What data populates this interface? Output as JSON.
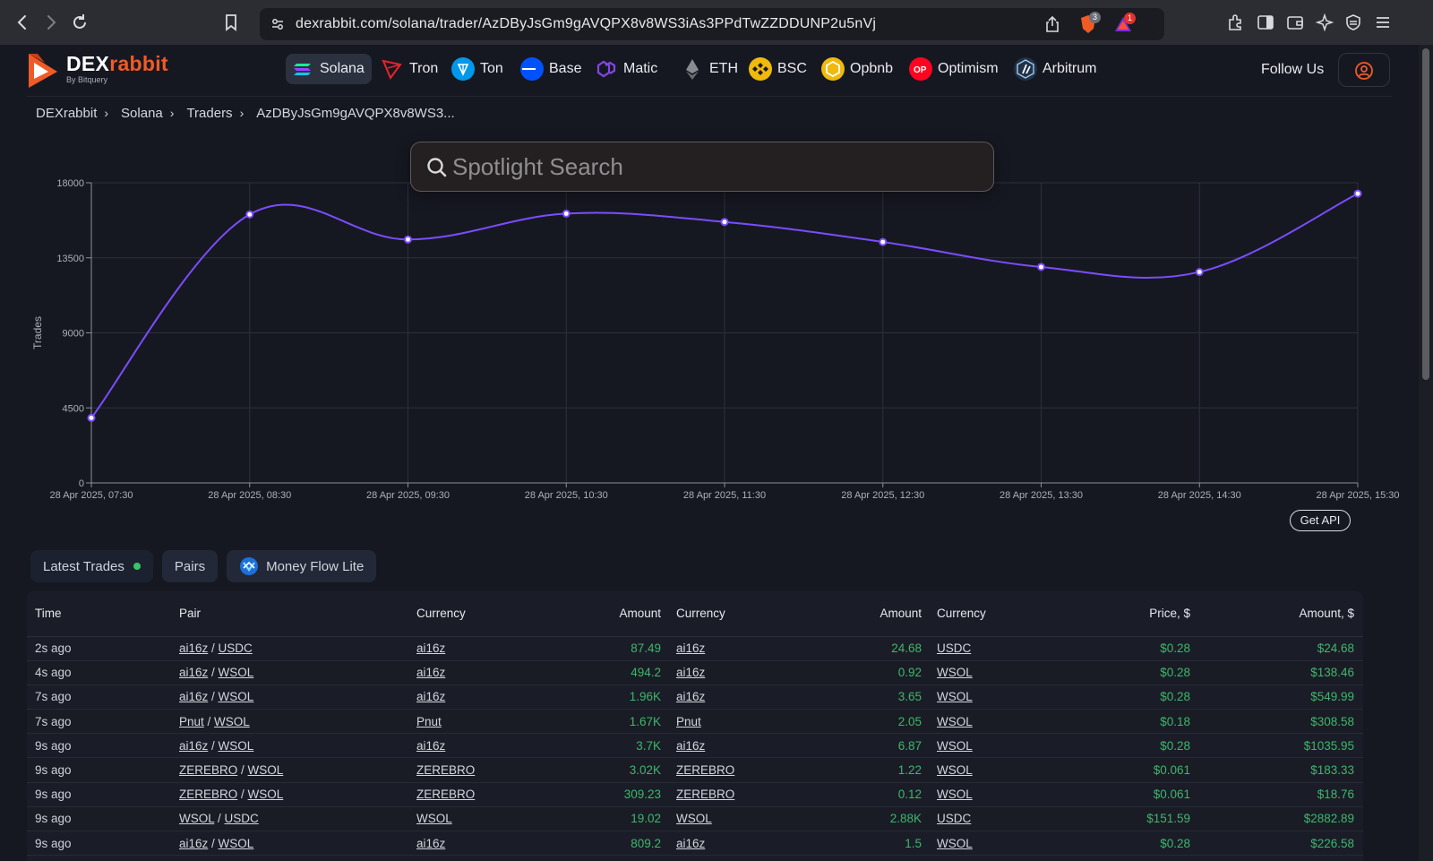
{
  "browser": {
    "url": "dexrabbit.com/solana/trader/AzDByJsGm9gAVQPX8v8WS3iAs3PPdTwZZDDUNP2u5nVj",
    "shield_badge": "3",
    "alert_badge": "1"
  },
  "brand": {
    "name_left": "DEX",
    "name_right": "rabbit",
    "sub": "By Bitquery",
    "accent": "#f05a28"
  },
  "chains": [
    {
      "label": "Solana",
      "icon": "solana-icon",
      "active": true
    },
    {
      "label": "Tron",
      "icon": "tron-icon"
    },
    {
      "label": "Ton",
      "icon": "ton-icon"
    },
    {
      "label": "Base",
      "icon": "base-icon"
    },
    {
      "label": "Matic",
      "icon": "matic-icon"
    },
    {
      "label": "ETH",
      "icon": "eth-icon"
    },
    {
      "label": "BSC",
      "icon": "bsc-icon"
    },
    {
      "label": "Opbnb",
      "icon": "opbnb-icon"
    },
    {
      "label": "Optimism",
      "icon": "optimism-icon"
    },
    {
      "label": "Arbitrum",
      "icon": "arbitrum-icon"
    }
  ],
  "follow_label": "Follow Us",
  "breadcrumb": [
    "DEXrabbit",
    "Solana",
    "Traders",
    "AzDByJsGm9gAVQPX8v8WS3..."
  ],
  "spotlight": {
    "placeholder": "Spotlight Search"
  },
  "chart_data": {
    "type": "line",
    "ylabel": "Trades",
    "xlabel": "",
    "ylim": [
      0,
      18000
    ],
    "yticks": [
      "0",
      "4500",
      "9000",
      "13500",
      "18000"
    ],
    "x": [
      "28 Apr 2025, 07:30",
      "28 Apr 2025, 08:30",
      "28 Apr 2025, 09:30",
      "28 Apr 2025, 10:30",
      "28 Apr 2025, 11:30",
      "28 Apr 2025, 12:30",
      "28 Apr 2025, 13:30",
      "28 Apr 2025, 14:30",
      "28 Apr 2025, 15:30"
    ],
    "values": [
      3900,
      16100,
      14600,
      16150,
      15650,
      14450,
      12950,
      12650,
      17350
    ],
    "color": "#7b4dff",
    "grid": true
  },
  "get_api_label": "Get API",
  "tabs": [
    {
      "label": "Latest Trades",
      "live": true
    },
    {
      "label": "Pairs"
    },
    {
      "label": "Money Flow Lite",
      "icon": "money-flow-icon"
    }
  ],
  "table": {
    "headers": [
      "Time",
      "Pair",
      "Currency",
      "Amount",
      "Currency",
      "Amount",
      "Currency",
      "Price, $",
      "Amount, $"
    ],
    "rows": [
      {
        "time": "2s ago",
        "pair_a": "ai16z",
        "pair_b": "USDC",
        "cur1": "ai16z",
        "amt1": "87.49",
        "cur2": "ai16z",
        "amt2": "24.68",
        "cur3": "USDC",
        "price": "$0.28",
        "usd": "$24.68"
      },
      {
        "time": "4s ago",
        "pair_a": "ai16z",
        "pair_b": "WSOL",
        "cur1": "ai16z",
        "amt1": "494.2",
        "cur2": "ai16z",
        "amt2": "0.92",
        "cur3": "WSOL",
        "price": "$0.28",
        "usd": "$138.46"
      },
      {
        "time": "7s ago",
        "pair_a": "ai16z",
        "pair_b": "WSOL",
        "cur1": "ai16z",
        "amt1": "1.96K",
        "cur2": "ai16z",
        "amt2": "3.65",
        "cur3": "WSOL",
        "price": "$0.28",
        "usd": "$549.99"
      },
      {
        "time": "7s ago",
        "pair_a": "Pnut",
        "pair_b": "WSOL",
        "cur1": "Pnut",
        "amt1": "1.67K",
        "cur2": "Pnut",
        "amt2": "2.05",
        "cur3": "WSOL",
        "price": "$0.18",
        "usd": "$308.58"
      },
      {
        "time": "9s ago",
        "pair_a": "ai16z",
        "pair_b": "WSOL",
        "cur1": "ai16z",
        "amt1": "3.7K",
        "cur2": "ai16z",
        "amt2": "6.87",
        "cur3": "WSOL",
        "price": "$0.28",
        "usd": "$1035.95"
      },
      {
        "time": "9s ago",
        "pair_a": "ZEREBRO",
        "pair_b": "WSOL",
        "cur1": "ZEREBRO",
        "amt1": "3.02K",
        "cur2": "ZEREBRO",
        "amt2": "1.22",
        "cur3": "WSOL",
        "price": "$0.061",
        "usd": "$183.33"
      },
      {
        "time": "9s ago",
        "pair_a": "ZEREBRO",
        "pair_b": "WSOL",
        "cur1": "ZEREBRO",
        "amt1": "309.23",
        "cur2": "ZEREBRO",
        "amt2": "0.12",
        "cur3": "WSOL",
        "price": "$0.061",
        "usd": "$18.76"
      },
      {
        "time": "9s ago",
        "pair_a": "WSOL",
        "pair_b": "USDC",
        "cur1": "WSOL",
        "amt1": "19.02",
        "cur2": "WSOL",
        "amt2": "2.88K",
        "cur3": "USDC",
        "price": "$151.59",
        "usd": "$2882.89"
      },
      {
        "time": "9s ago",
        "pair_a": "ai16z",
        "pair_b": "WSOL",
        "cur1": "ai16z",
        "amt1": "809.2",
        "cur2": "ai16z",
        "amt2": "1.5",
        "cur3": "WSOL",
        "price": "$0.28",
        "usd": "$226.58"
      }
    ]
  }
}
